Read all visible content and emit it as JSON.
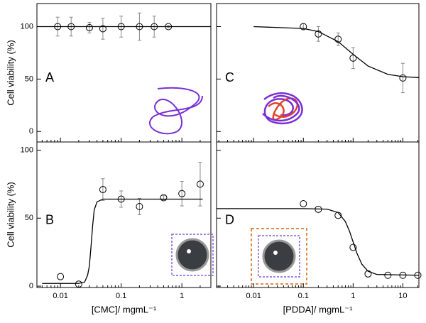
{
  "chart_data": [
    {
      "type": "scatter",
      "panel_label": "A",
      "y_label": "Cell viability (%)",
      "xscale": "log",
      "xlim": [
        0.0041,
        3.0
      ],
      "xticks": [
        0.01,
        0.1,
        1
      ],
      "show_xtick_labels": false,
      "ylim": [
        -10,
        122
      ],
      "yticks": [
        0,
        50,
        100
      ],
      "show_ytick_labels": true,
      "minor_ticks": true,
      "series": [
        {
          "kind": "points",
          "color": "#000000",
          "x": [
            0.009,
            0.015,
            0.03,
            0.05,
            0.1,
            0.2,
            0.35,
            0.6
          ],
          "values": [
            100,
            100,
            99,
            98,
            100,
            100,
            100,
            100
          ],
          "errors": [
            9,
            9,
            5,
            10,
            10,
            13,
            10,
            1
          ]
        },
        {
          "kind": "line",
          "color": "#000000",
          "x": [
            0.0041,
            3.0
          ],
          "values": [
            100,
            100
          ]
        }
      ]
    },
    {
      "type": "scatter",
      "panel_label": "B",
      "y_label": "Cell viability (%)",
      "x_label": "[CMC]/ mgmL⁻¹",
      "xscale": "log",
      "xlim": [
        0.0041,
        3.0
      ],
      "xticks": [
        0.01,
        0.1,
        1
      ],
      "show_xtick_labels": true,
      "ylim": [
        -1,
        106
      ],
      "yticks": [
        0,
        50,
        100
      ],
      "show_ytick_labels": true,
      "minor_ticks": true,
      "series": [
        {
          "kind": "points",
          "color": "#000000",
          "x": [
            0.01,
            0.02,
            0.05,
            0.1,
            0.2,
            0.5,
            1,
            2
          ],
          "values": [
            7,
            1.5,
            71,
            64,
            58.5,
            65,
            68,
            75
          ],
          "errors": [
            0,
            0,
            8,
            6,
            6,
            1.5,
            9,
            16
          ]
        },
        {
          "kind": "line",
          "color": "#000000",
          "x": [
            0.005,
            0.02,
            0.025,
            0.028,
            0.03,
            0.032,
            0.034,
            0.036,
            0.04,
            0.05,
            2.2
          ],
          "values": [
            2,
            2,
            3,
            8,
            15,
            30,
            45,
            56,
            62,
            64,
            64
          ]
        }
      ]
    },
    {
      "type": "scatter",
      "panel_label": "C",
      "xscale": "log",
      "xlim": [
        0.0018,
        21
      ],
      "xticks": [
        0.01,
        0.1,
        1,
        10
      ],
      "show_xtick_labels": false,
      "ylim": [
        -10,
        122
      ],
      "yticks": [
        0,
        50,
        100
      ],
      "show_ytick_labels": false,
      "minor_ticks": true,
      "series": [
        {
          "kind": "points",
          "color": "#000000",
          "x": [
            0.1,
            0.2,
            0.5,
            1,
            10
          ],
          "values": [
            100,
            93,
            88,
            70,
            51
          ],
          "errors": [
            3,
            7,
            6,
            10,
            14
          ]
        },
        {
          "kind": "line",
          "color": "#000000",
          "x": [
            0.01,
            0.1,
            0.2,
            0.5,
            1,
            2,
            5,
            10,
            21
          ],
          "values": [
            100,
            98.2,
            95.3,
            85.7,
            73.6,
            62.4,
            54.5,
            52.3,
            51.4
          ]
        }
      ]
    },
    {
      "type": "scatter",
      "panel_label": "D",
      "x_label": "[PDDA]/ mgmL⁻¹",
      "xscale": "log",
      "xlim": [
        0.0018,
        21
      ],
      "xticks": [
        0.01,
        0.1,
        1,
        10
      ],
      "show_xtick_labels": true,
      "ylim": [
        -1,
        106
      ],
      "yticks": [
        0,
        50,
        100
      ],
      "show_ytick_labels": false,
      "minor_ticks": true,
      "series": [
        {
          "kind": "points",
          "color": "#000000",
          "x": [
            0.1,
            0.2,
            0.5,
            1,
            2,
            5,
            10,
            20
          ],
          "values": [
            60.6,
            56.5,
            52,
            28.5,
            9,
            8,
            8,
            8
          ],
          "errors": [
            0,
            0,
            0,
            0,
            0,
            0,
            0,
            0
          ]
        },
        {
          "kind": "line",
          "color": "#000000",
          "x": [
            0.0018,
            0.1,
            0.3,
            0.5,
            0.7,
            0.85,
            1,
            1.2,
            1.5,
            2,
            3,
            21
          ],
          "values": [
            57,
            57,
            56.6,
            54.1,
            47.5,
            40.2,
            32.5,
            24,
            16.1,
            10.9,
            8.6,
            8
          ]
        }
      ]
    }
  ]
}
